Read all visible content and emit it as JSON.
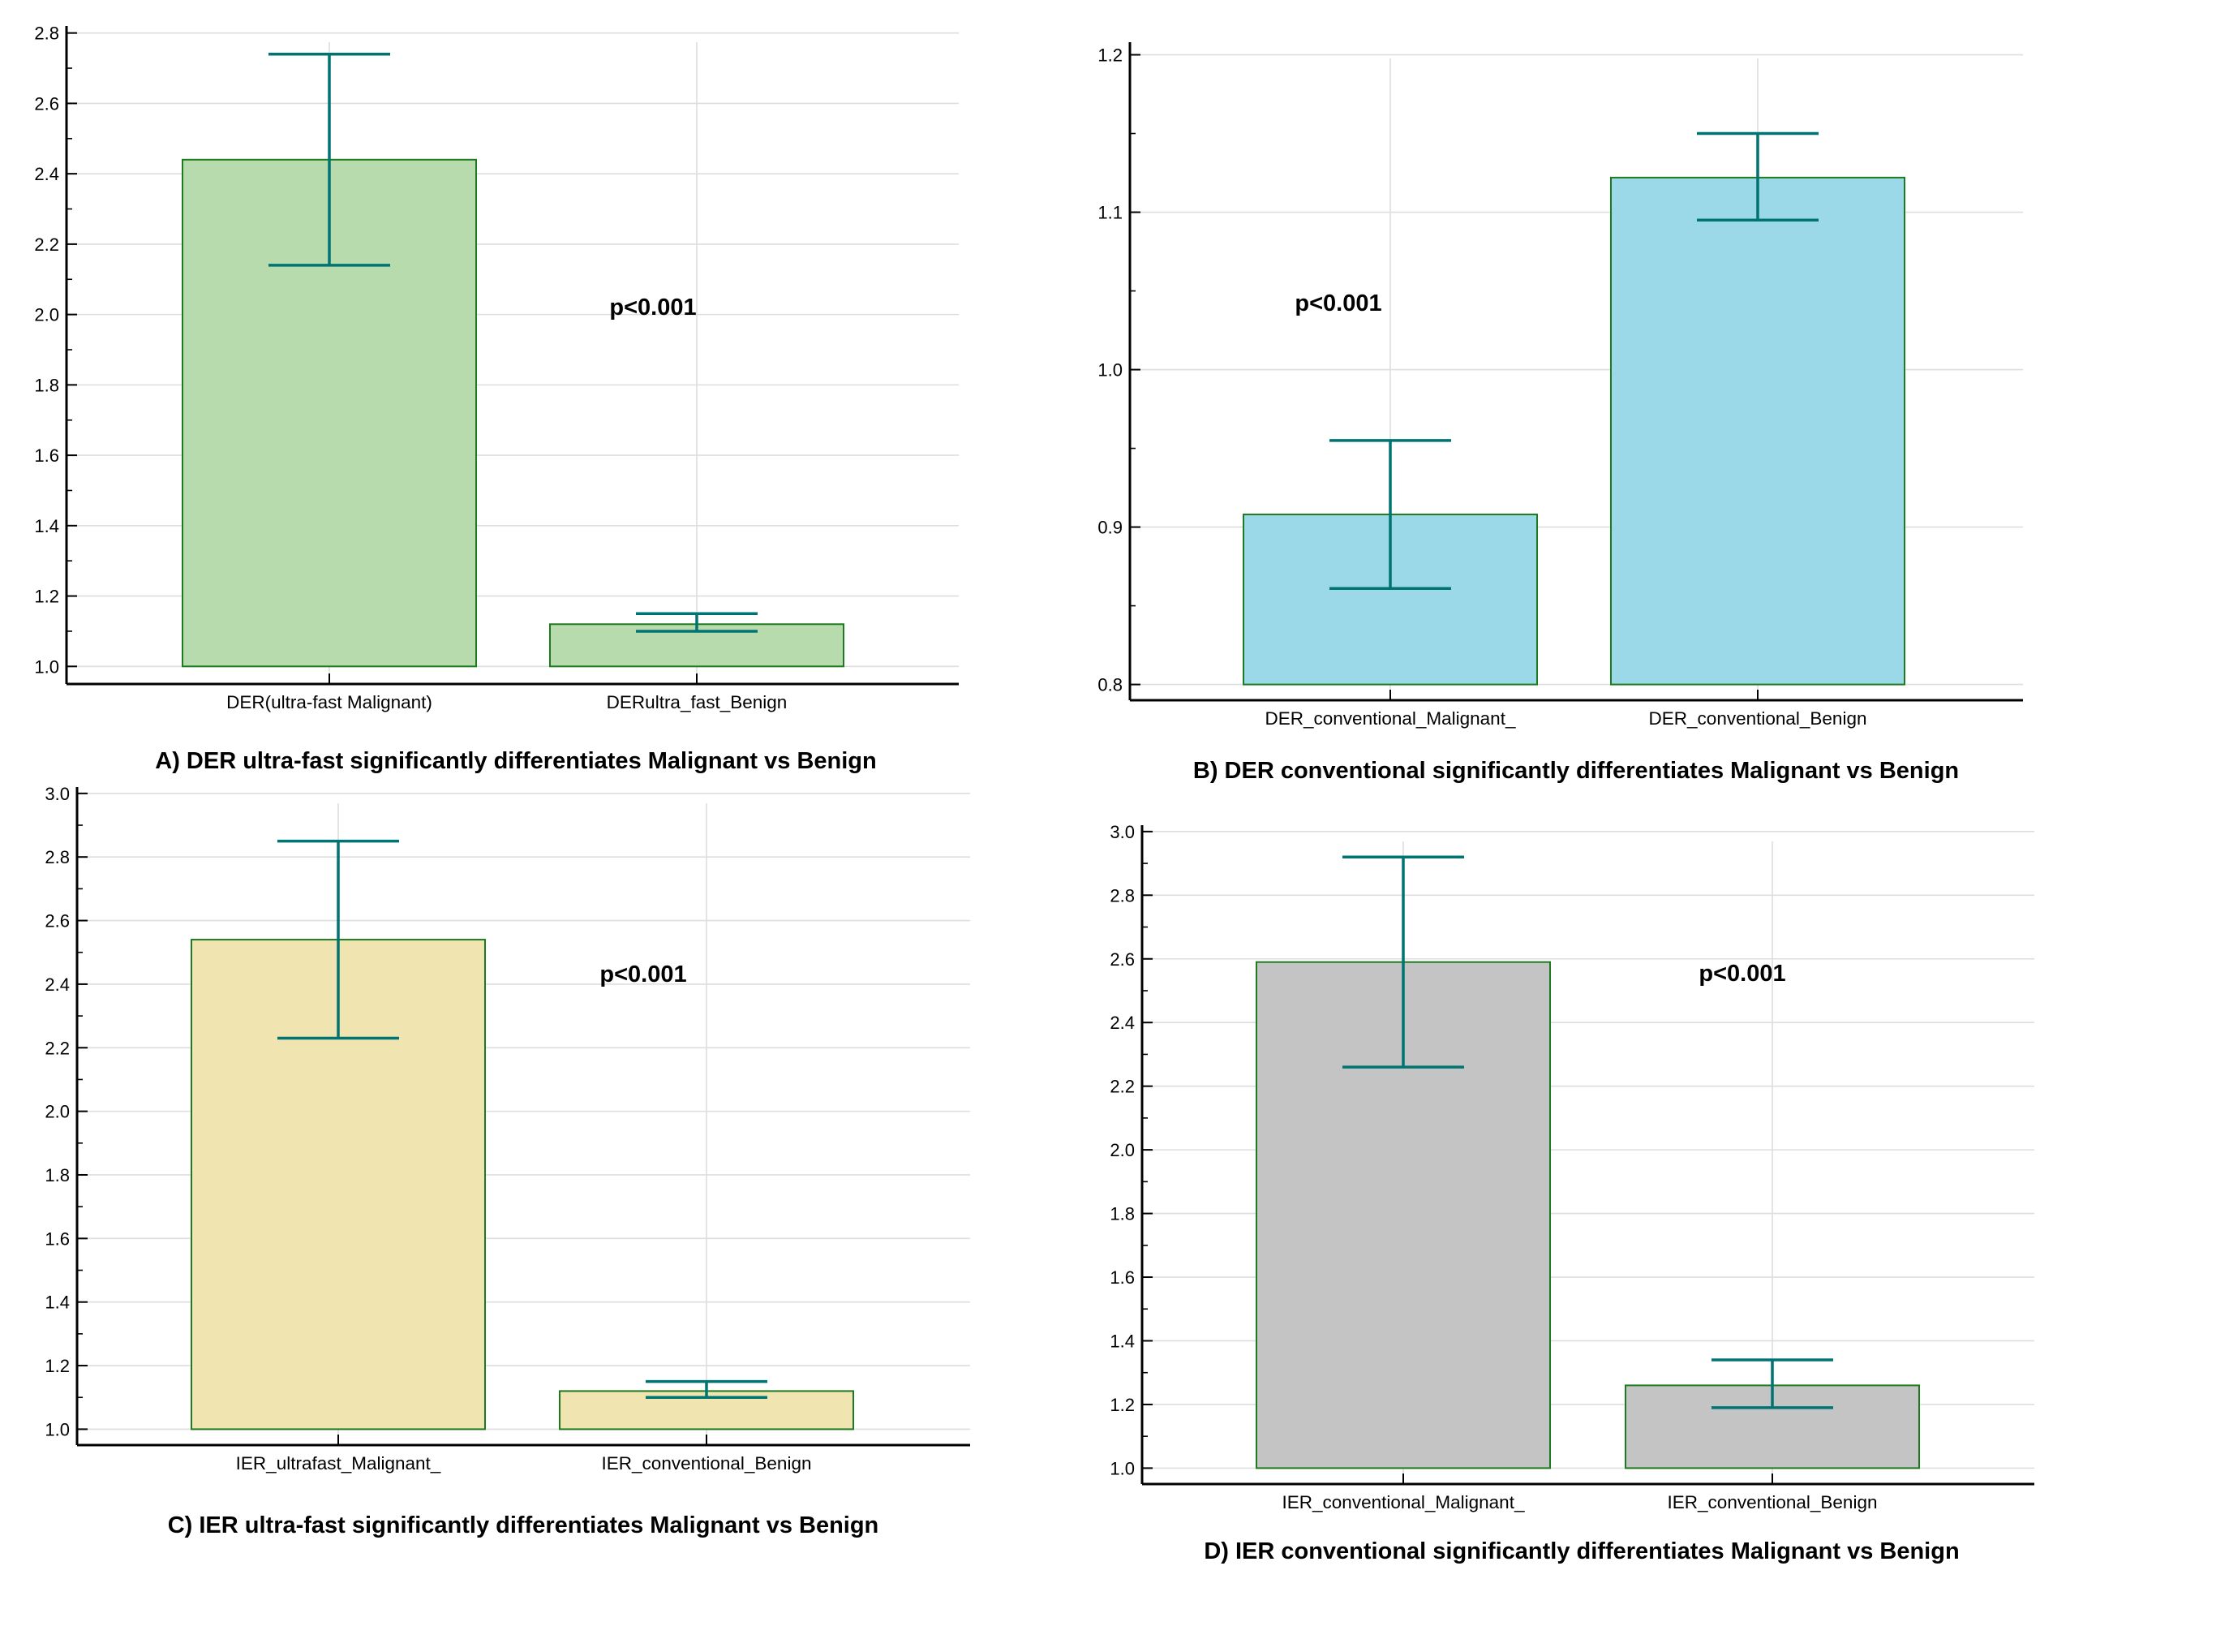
{
  "chart_data": [
    {
      "type": "bar",
      "panel": "A",
      "title": "A) DER ultra-fast significantly differentiates Malignant vs Benign",
      "categories": [
        "DER(ultra-fast Malignant)",
        "DERultra_fast_Benign"
      ],
      "values": [
        2.44,
        1.12
      ],
      "error_low": [
        2.14,
        1.1
      ],
      "error_high": [
        2.74,
        1.15
      ],
      "annotation": "p<0.001",
      "bar_color": "#b8dbad",
      "ylim": [
        0.95,
        2.82
      ],
      "yticks": [
        1.0,
        1.2,
        1.4,
        1.6,
        1.8,
        2.0,
        2.2,
        2.4,
        2.6,
        2.8
      ],
      "tick_labels": [
        "1.0",
        "1.2",
        "1.4",
        "1.6",
        "1.8",
        "2.0",
        "2.2",
        "2.4",
        "2.6",
        "2.8"
      ],
      "xlabel": "",
      "ylabel": "",
      "grid": true
    },
    {
      "type": "bar",
      "panel": "B",
      "title": "B) DER conventional significantly differentiates Malignant vs Benign",
      "categories": [
        "DER_conventional_Malignant_",
        "DER_conventional_Benign"
      ],
      "values": [
        0.908,
        1.122
      ],
      "error_low": [
        0.861,
        1.095
      ],
      "error_high": [
        0.955,
        1.15
      ],
      "annotation": "p<0.001",
      "bar_color": "#9bd9e8",
      "ylim": [
        0.79,
        1.208
      ],
      "yticks": [
        0.8,
        0.9,
        1.0,
        1.1,
        1.2
      ],
      "tick_labels": [
        "0.8",
        "0.9",
        "1.0",
        "1.1",
        "1.2"
      ],
      "xlabel": "",
      "ylabel": "",
      "grid": true
    },
    {
      "type": "bar",
      "panel": "C",
      "title": "C)  IER ultra-fast significantly differentiates Malignant vs Benign",
      "categories": [
        "IER_ultrafast_Malignant_",
        "IER_conventional_Benign"
      ],
      "values": [
        2.54,
        1.12
      ],
      "error_low": [
        2.23,
        1.1
      ],
      "error_high": [
        2.85,
        1.15
      ],
      "annotation": "p<0.001",
      "bar_color": "#f0e4b0",
      "ylim": [
        0.95,
        3.02
      ],
      "yticks": [
        1.0,
        1.2,
        1.4,
        1.6,
        1.8,
        2.0,
        2.2,
        2.4,
        2.6,
        2.8,
        3.0
      ],
      "tick_labels": [
        "1.0",
        "1.2",
        "1.4",
        "1.6",
        "1.8",
        "2.0",
        "2.2",
        "2.4",
        "2.6",
        "2.8",
        "3.0"
      ],
      "xlabel": "",
      "ylabel": "",
      "grid": true
    },
    {
      "type": "bar",
      "panel": "D",
      "title": "D)  IER conventional significantly differentiates Malignant vs Benign",
      "categories": [
        "IER_conventional_Malignant_",
        "IER_conventional_Benign"
      ],
      "values": [
        2.59,
        1.26
      ],
      "error_low": [
        2.26,
        1.19
      ],
      "error_high": [
        2.92,
        1.34
      ],
      "annotation": "p<0.001",
      "bar_color": "#c4c4c4",
      "ylim": [
        0.95,
        3.02
      ],
      "yticks": [
        1.0,
        1.2,
        1.4,
        1.6,
        1.8,
        2.0,
        2.2,
        2.4,
        2.6,
        2.8,
        3.0
      ],
      "tick_labels": [
        "1.0",
        "1.2",
        "1.4",
        "1.6",
        "1.8",
        "2.0",
        "2.2",
        "2.4",
        "2.6",
        "2.8",
        "3.0"
      ],
      "xlabel": "",
      "ylabel": "",
      "grid": true
    }
  ],
  "colors": {
    "bar_edge": "#1e7a1e",
    "error_bar": "#007373",
    "grid": "#dedede",
    "axis": "#000000"
  }
}
